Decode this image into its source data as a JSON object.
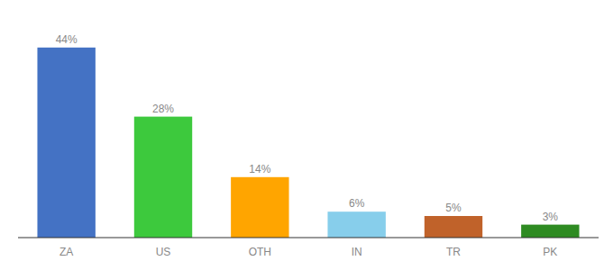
{
  "chart_data": {
    "type": "bar",
    "categories": [
      "ZA",
      "US",
      "OTH",
      "IN",
      "TR",
      "PK"
    ],
    "values": [
      44,
      28,
      14,
      6,
      5,
      3
    ],
    "value_labels": [
      "44%",
      "28%",
      "14%",
      "6%",
      "5%",
      "3%"
    ],
    "colors": [
      "#4472C4",
      "#3DC93D",
      "#FFA500",
      "#87CEEB",
      "#C0622A",
      "#2E8B22"
    ],
    "ylim": [
      0,
      50
    ],
    "data_labels": true,
    "tick_labels": "x",
    "grid": false
  }
}
